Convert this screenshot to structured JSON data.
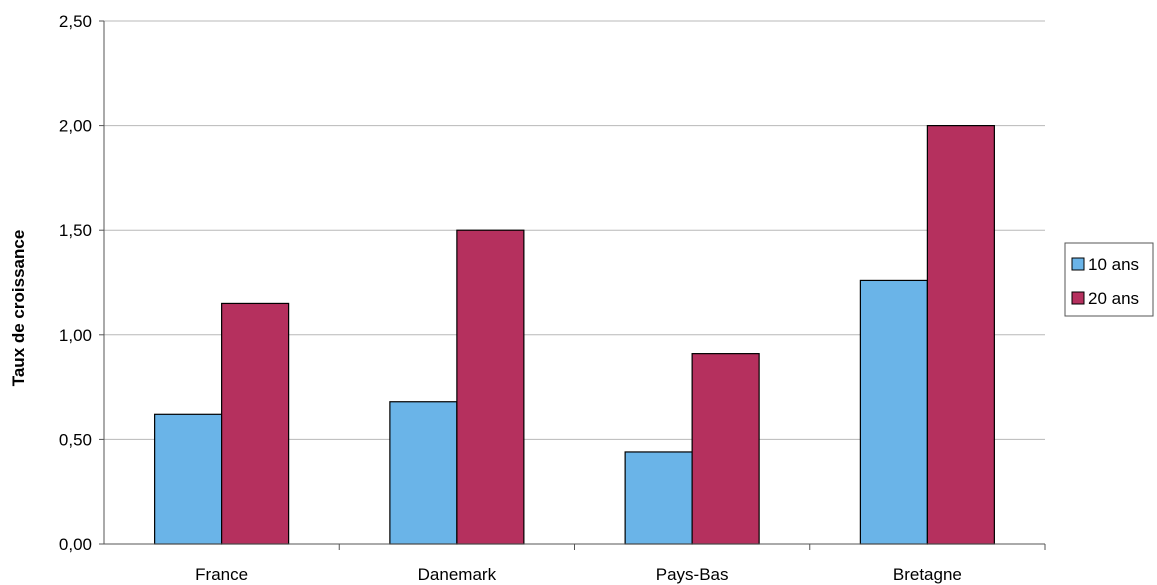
{
  "chart_data": {
    "type": "bar",
    "title": "",
    "xlabel": "",
    "ylabel": "Taux de croissance",
    "categories": [
      "France",
      "Danemark",
      "Pays-Bas",
      "Bretagne"
    ],
    "series": [
      {
        "name": "10 ans",
        "values": [
          0.62,
          0.68,
          0.44,
          1.26
        ],
        "color": "#6ab4e8"
      },
      {
        "name": "20 ans",
        "values": [
          1.15,
          1.5,
          0.91,
          2.0
        ],
        "color": "#b5305e"
      }
    ],
    "ylim": [
      0,
      2.5
    ],
    "yticks": [
      "0,00",
      "0,50",
      "1,00",
      "1,50",
      "2,00",
      "2,50"
    ],
    "grid": true,
    "legend": "right"
  }
}
